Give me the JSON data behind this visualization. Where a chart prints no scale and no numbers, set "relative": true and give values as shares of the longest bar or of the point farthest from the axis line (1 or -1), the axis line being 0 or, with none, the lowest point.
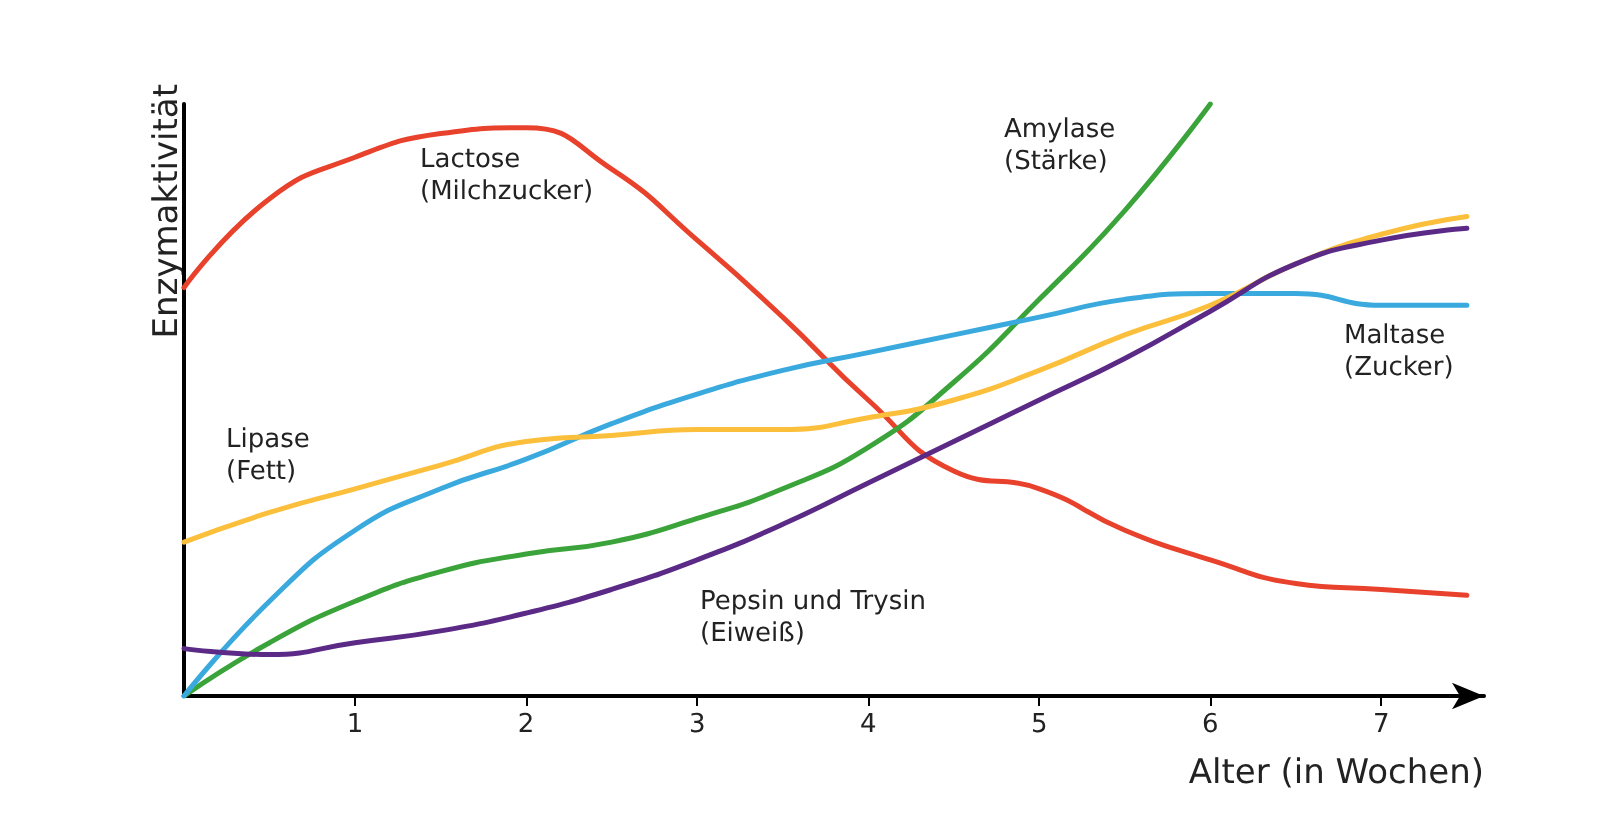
{
  "chart_data": {
    "type": "line",
    "relative": true,
    "xlabel": "Alter (in Wochen)",
    "ylabel": "Enzymaktivität",
    "x": [
      0,
      0.5,
      1,
      1.5,
      2,
      2.5,
      3,
      3.5,
      4,
      4.5,
      5,
      5.5,
      6,
      6.5,
      7,
      7.5
    ],
    "xlim": [
      0,
      7.6
    ],
    "xticks": [
      1,
      2,
      3,
      4,
      5,
      6,
      7
    ],
    "grid": false,
    "legend": false,
    "marker": "none",
    "line_style": "solid",
    "series": [
      {
        "name": "Lactose (Milchzucker)",
        "color": "#e8412c",
        "values": [
          0.69,
          0.84,
          0.91,
          0.95,
          0.96,
          0.89,
          0.77,
          0.64,
          0.5,
          0.38,
          0.35,
          0.28,
          0.23,
          0.19,
          0.18,
          0.17
        ]
      },
      {
        "name": "Amylase (Stärke)",
        "color": "#3aa33a",
        "values": [
          0,
          0.09,
          0.16,
          0.21,
          0.24,
          0.26,
          0.3,
          0.35,
          0.42,
          0.53,
          0.67,
          0.82,
          1,
          null,
          null,
          null
        ]
      },
      {
        "name": "Maltase (Zucker)",
        "color": "#3aa9de",
        "values": [
          0,
          0.16,
          0.28,
          0.35,
          0.4,
          0.46,
          0.51,
          0.55,
          0.58,
          0.61,
          0.64,
          0.67,
          0.68,
          0.68,
          0.66,
          0.66
        ]
      },
      {
        "name": "Lipase (Fett)",
        "color": "#fbbf3c",
        "values": [
          0.26,
          0.31,
          0.35,
          0.39,
          0.43,
          0.44,
          0.45,
          0.45,
          0.47,
          0.5,
          0.55,
          0.61,
          0.66,
          0.73,
          0.78,
          0.81
        ]
      },
      {
        "name": "Pepsin und Trysin (Eiweiß)",
        "color": "#5b2a86",
        "values": [
          0.08,
          0.07,
          0.09,
          0.11,
          0.14,
          0.18,
          0.23,
          0.29,
          0.36,
          0.43,
          0.5,
          0.57,
          0.65,
          0.73,
          0.77,
          0.79
        ]
      }
    ]
  }
}
